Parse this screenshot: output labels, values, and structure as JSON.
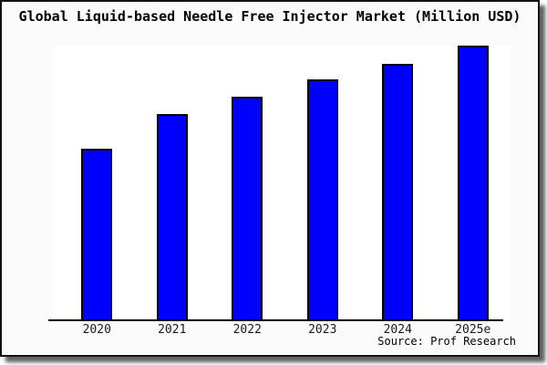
{
  "window": {
    "background_color": "#fafafa",
    "plot_background_color": "#ffffff",
    "frame_border_color": "#111111"
  },
  "chart": {
    "title": "Global Liquid-based Needle Free Injector Market (Million USD)",
    "source": "Source: Prof Research"
  },
  "chart_data": {
    "type": "bar",
    "title": "Global Liquid-based Needle Free Injector Market (Million USD)",
    "categories": [
      "2020",
      "2021",
      "2022",
      "2023",
      "2024",
      "2025e"
    ],
    "values": [
      62.5,
      74.9,
      81.3,
      87.6,
      93.3,
      100
    ],
    "values_note": "No y-axis scale or data labels are shown in the image; values are bar heights measured as percent of the tallest (2025e) bar",
    "xlabel": "",
    "ylabel": "",
    "ylim": [
      0,
      100
    ],
    "grid": false,
    "legend": false,
    "y_axis_shown": false,
    "bar_color": "#0000ff",
    "bar_border_color": "#000000",
    "source": "Source: Prof Research"
  }
}
